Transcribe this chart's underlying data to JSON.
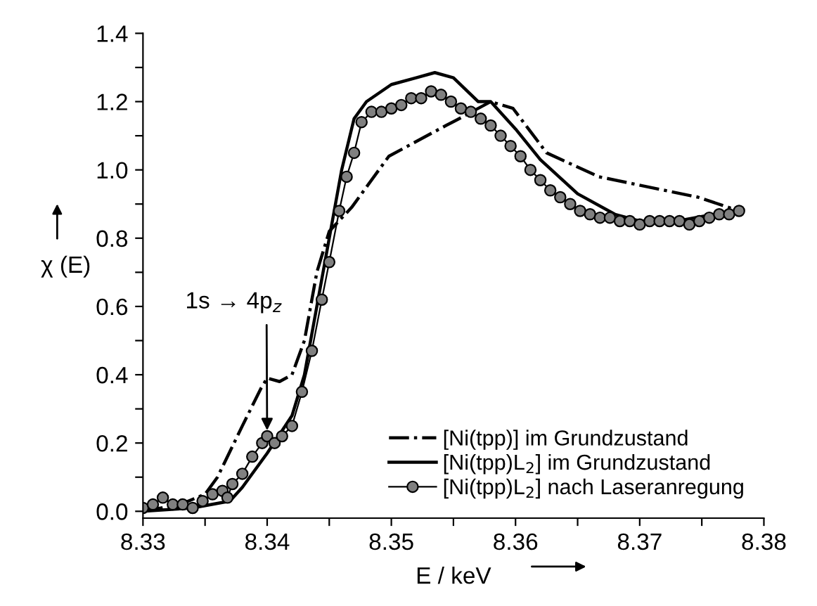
{
  "chart_data": {
    "type": "line",
    "xlabel": "E / keV",
    "ylabel": "χ (E)",
    "xlim": [
      8.33,
      8.38
    ],
    "ylim": [
      -0.02,
      1.4
    ],
    "xticks": [
      8.33,
      {
        "value": 8.335,
        "label": null
      },
      8.34,
      {
        "value": 8.345,
        "label": null
      },
      8.35,
      {
        "value": 8.355,
        "label": null
      },
      8.36,
      {
        "value": 8.365,
        "label": null
      },
      8.37,
      {
        "value": 8.375,
        "label": null
      },
      8.38
    ],
    "yticks": [
      {
        "value": 0,
        "label": "0.0"
      },
      {
        "value": 0.1,
        "label": null
      },
      0.2,
      {
        "value": 0.3,
        "label": null
      },
      0.4,
      {
        "value": 0.5,
        "label": null
      },
      0.6,
      {
        "value": 0.7,
        "label": null
      },
      0.8,
      {
        "value": 0.9,
        "label": null
      },
      {
        "value": 1.0,
        "label": "1.0"
      },
      {
        "value": 1.1,
        "label": null
      },
      1.2,
      {
        "value": 1.3,
        "label": null
      },
      1.4
    ],
    "legend": "bottom right",
    "grid": false,
    "annotations": [
      {
        "text": "1s → 4p$_{z}$",
        "x": 8.34,
        "y": 0.22
      }
    ],
    "series": [
      {
        "name": "[Ni(tpp)] im Grundzustand",
        "color": "#000000",
        "line_style": "dashdot",
        "marker": "none",
        "x": [
          8.33,
          8.333,
          8.335,
          8.336,
          8.338,
          8.3395,
          8.34,
          8.341,
          8.342,
          8.343,
          8.344,
          8.345,
          8.3468,
          8.3498,
          8.3544,
          8.3552,
          8.358,
          8.3598,
          8.3625,
          8.3667,
          8.3747,
          8.378
        ],
        "values": [
          0.0,
          0.02,
          0.05,
          0.1,
          0.25,
          0.36,
          0.39,
          0.38,
          0.4,
          0.5,
          0.7,
          0.82,
          0.89,
          1.04,
          1.13,
          1.145,
          1.2,
          1.18,
          1.05,
          0.98,
          0.92,
          0.88
        ]
      },
      {
        "name": "[Ni(tpp)L$_{2}$] im Grundzustand",
        "color": "#000000",
        "line_style": "solid",
        "marker": "none",
        "x": [
          8.33,
          8.334,
          8.337,
          8.338,
          8.34,
          8.342,
          8.343,
          8.344,
          8.345,
          8.346,
          8.347,
          8.348,
          8.35,
          8.352,
          8.3535,
          8.355,
          8.357,
          8.358,
          8.36,
          8.362,
          8.365,
          8.368,
          8.37,
          8.373,
          8.376,
          8.378
        ],
        "values": [
          0.0,
          0.01,
          0.03,
          0.07,
          0.17,
          0.28,
          0.4,
          0.6,
          0.8,
          1.0,
          1.15,
          1.2,
          1.25,
          1.27,
          1.285,
          1.27,
          1.2,
          1.2,
          1.12,
          1.03,
          0.93,
          0.87,
          0.85,
          0.85,
          0.87,
          0.88
        ]
      },
      {
        "name": "[Ni(tpp)L$_{2}$] nach Laseranregung",
        "color": "#808080",
        "line_style": "solid",
        "marker": "circle",
        "x": [
          8.33,
          8.3308,
          8.3316,
          8.3324,
          8.3332,
          8.334,
          8.3348,
          8.3356,
          8.3364,
          8.3368,
          8.3372,
          8.338,
          8.3388,
          8.3396,
          8.34,
          8.3406,
          8.3412,
          8.342,
          8.3428,
          8.3436,
          8.3444,
          8.345,
          8.3458,
          8.3464,
          8.347,
          8.3476,
          8.3484,
          8.3492,
          8.35,
          8.3508,
          8.3516,
          8.3524,
          8.3532,
          8.354,
          8.3548,
          8.3556,
          8.3564,
          8.3572,
          8.358,
          8.3588,
          8.3596,
          8.3604,
          8.3612,
          8.362,
          8.3628,
          8.3636,
          8.3644,
          8.3652,
          8.366,
          8.3668,
          8.3676,
          8.3684,
          8.3692,
          8.37,
          8.3708,
          8.3716,
          8.3724,
          8.3732,
          8.374,
          8.3748,
          8.3756,
          8.3764,
          8.3772,
          8.378
        ],
        "values": [
          0.01,
          0.02,
          0.04,
          0.02,
          0.02,
          0.01,
          0.03,
          0.05,
          0.06,
          0.04,
          0.08,
          0.11,
          0.16,
          0.2,
          0.22,
          0.2,
          0.22,
          0.25,
          0.35,
          0.47,
          0.62,
          0.73,
          0.88,
          0.98,
          1.05,
          1.14,
          1.17,
          1.17,
          1.18,
          1.19,
          1.21,
          1.21,
          1.23,
          1.22,
          1.2,
          1.18,
          1.17,
          1.15,
          1.13,
          1.1,
          1.07,
          1.04,
          1.0,
          0.97,
          0.94,
          0.92,
          0.9,
          0.88,
          0.87,
          0.86,
          0.86,
          0.85,
          0.85,
          0.84,
          0.85,
          0.85,
          0.85,
          0.85,
          0.84,
          0.85,
          0.86,
          0.87,
          0.87,
          0.88
        ]
      }
    ]
  }
}
